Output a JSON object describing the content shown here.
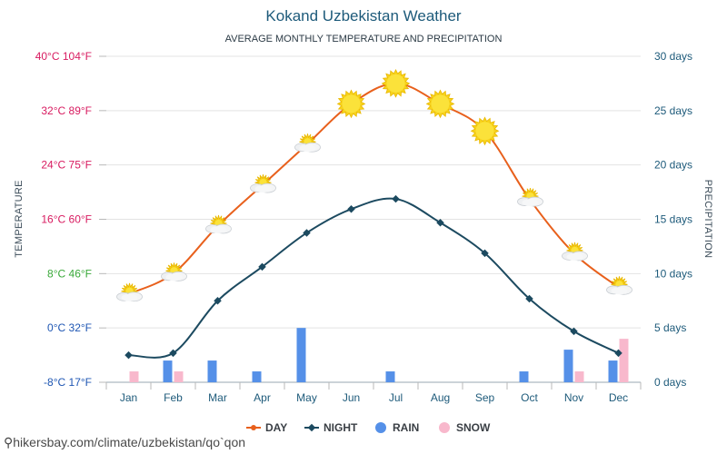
{
  "chart_data": {
    "type": "line",
    "title": "Kokand Uzbekistan Weather",
    "subtitle": "AVERAGE MONTHLY TEMPERATURE AND PRECIPITATION",
    "categories": [
      "Jan",
      "Feb",
      "Mar",
      "Apr",
      "May",
      "Jun",
      "Jul",
      "Aug",
      "Sep",
      "Oct",
      "Nov",
      "Dec"
    ],
    "left_axis": {
      "label": "TEMPERATURE",
      "ylim": [
        -8,
        40
      ],
      "ticks": [
        {
          "value": 40,
          "text": "40°C 104°F",
          "color": "#d81b60"
        },
        {
          "value": 32,
          "text": "32°C 89°F",
          "color": "#d81b60"
        },
        {
          "value": 24,
          "text": "24°C 75°F",
          "color": "#d81b60"
        },
        {
          "value": 16,
          "text": "16°C 60°F",
          "color": "#d81b60"
        },
        {
          "value": 8,
          "text": "8°C 46°F",
          "color": "#3aa93a"
        },
        {
          "value": 0,
          "text": "0°C 32°F",
          "color": "#1e56b3"
        },
        {
          "value": -8,
          "text": "-8°C 17°F",
          "color": "#1e56b3"
        }
      ]
    },
    "right_axis": {
      "label": "PRECIPITATION",
      "ylim": [
        0,
        30
      ],
      "ticks": [
        {
          "value": 30,
          "text": "30 days"
        },
        {
          "value": 25,
          "text": "25 days"
        },
        {
          "value": 20,
          "text": "20 days"
        },
        {
          "value": 15,
          "text": "15 days"
        },
        {
          "value": 10,
          "text": "10 days"
        },
        {
          "value": 5,
          "text": "5 days"
        },
        {
          "value": 0,
          "text": "0 days"
        }
      ]
    },
    "series": [
      {
        "name": "DAY",
        "kind": "line",
        "axis": "left",
        "color": "#e8601c",
        "values": [
          5,
          8,
          15,
          21,
          27,
          33,
          36,
          33,
          29,
          19,
          11,
          6
        ]
      },
      {
        "name": "NIGHT",
        "kind": "line",
        "axis": "left",
        "color": "#1c4a60",
        "values": [
          -4,
          -3.7,
          4,
          9,
          14,
          17.5,
          19,
          15.5,
          11,
          4.3,
          -0.5,
          -3.7
        ]
      },
      {
        "name": "RAIN",
        "kind": "bar",
        "axis": "right",
        "color": "#5590e8",
        "values": [
          0,
          2,
          2,
          1,
          5,
          0,
          1,
          0,
          0,
          1,
          3,
          2
        ]
      },
      {
        "name": "SNOW",
        "kind": "bar",
        "axis": "right",
        "color": "#f8b8cc",
        "values": [
          1,
          1,
          0,
          0,
          0,
          0,
          0,
          0,
          0,
          0,
          1,
          4
        ]
      }
    ],
    "day_icons": [
      "partly-cloudy",
      "partly-cloudy",
      "partly-cloudy",
      "partly-cloudy",
      "partly-cloudy",
      "sun",
      "sun",
      "sun",
      "sun",
      "partly-cloudy",
      "partly-cloudy",
      "partly-cloudy"
    ],
    "grid": true,
    "legend_position": "bottom"
  },
  "footer": {
    "pin_icon": "location-pin-icon",
    "url": "hikersbay.com/climate/uzbekistan/qo`qon"
  }
}
